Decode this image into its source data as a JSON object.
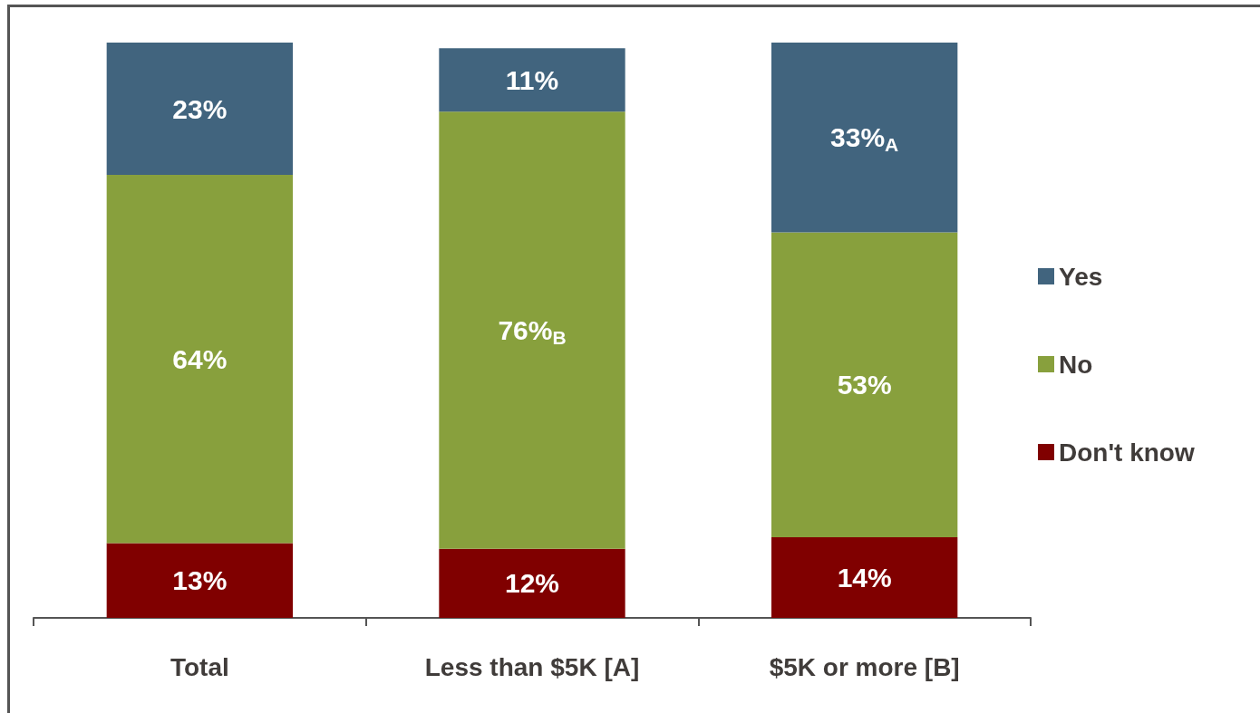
{
  "chart_data": {
    "type": "bar",
    "stacked": true,
    "categories": [
      "Total",
      "Less than $5K [A]",
      "$5K or more [B]"
    ],
    "series": [
      {
        "name": "Don't know",
        "color": "#800000",
        "values": [
          13,
          12,
          14
        ],
        "value_labels": [
          "13%",
          "12%",
          "14%"
        ]
      },
      {
        "name": "No",
        "color": "#88a03d",
        "values": [
          64,
          76,
          53
        ],
        "value_labels": [
          "64%",
          "76%$_{B}$",
          "53%"
        ]
      },
      {
        "name": "Yes",
        "color": "#41647e",
        "values": [
          23,
          11,
          33
        ],
        "value_labels": [
          "23%",
          "11%",
          "33%$_{A}$"
        ]
      }
    ],
    "legend": "right"
  }
}
